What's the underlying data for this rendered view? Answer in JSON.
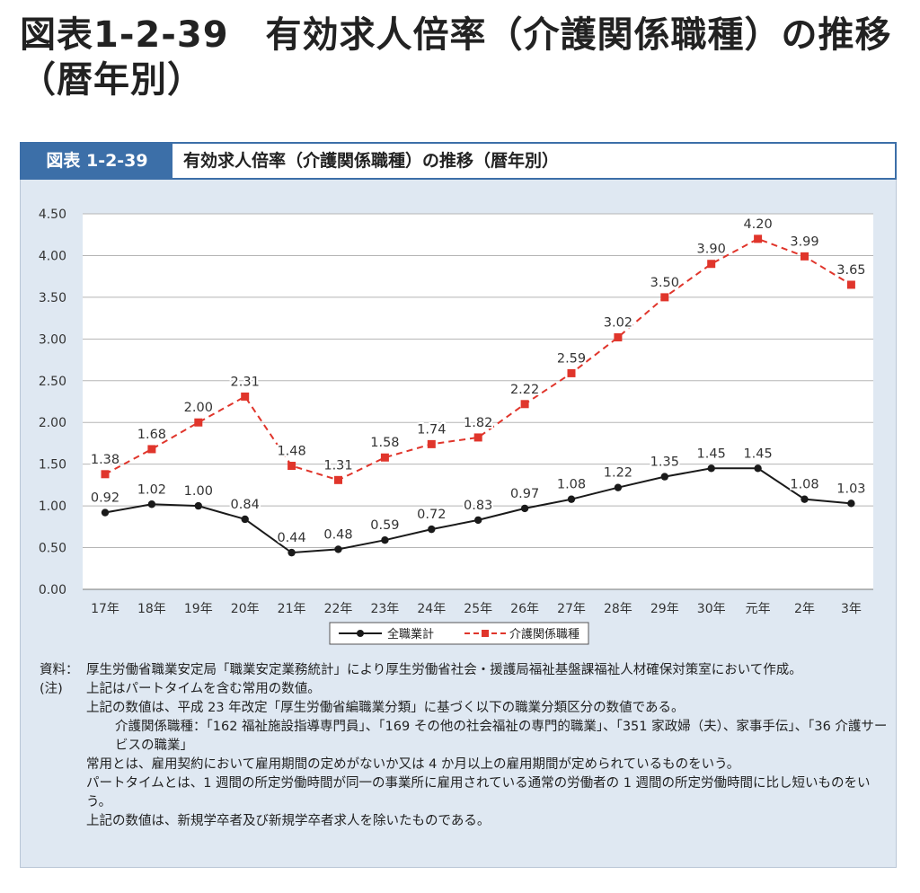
{
  "title": "図表1-2-39　有効求人倍率（介護関係職種）の推移（暦年別）",
  "header": {
    "label": "図表 1-2-39",
    "text": "有効求人倍率（介護関係職種）の推移（暦年別）"
  },
  "chart_data": {
    "type": "line",
    "categories": [
      "17年",
      "18年",
      "19年",
      "20年",
      "21年",
      "22年",
      "23年",
      "24年",
      "25年",
      "26年",
      "27年",
      "28年",
      "29年",
      "30年",
      "元年",
      "2年",
      "3年"
    ],
    "ylim": [
      0,
      4.5
    ],
    "yticks": [
      "0.00",
      "0.50",
      "1.00",
      "1.50",
      "2.00",
      "2.50",
      "3.00",
      "3.50",
      "4.00",
      "4.50"
    ],
    "grid": "horizontal",
    "legend_position": "bottom-center",
    "series": [
      {
        "name": "全職業計",
        "color": "#1a1a1a",
        "marker": "circle",
        "style": "solid",
        "values": [
          0.92,
          1.02,
          1.0,
          0.84,
          0.44,
          0.48,
          0.59,
          0.72,
          0.83,
          0.97,
          1.08,
          1.22,
          1.35,
          1.45,
          1.45,
          1.08,
          1.03
        ],
        "labels": [
          "0.92",
          "1.02",
          "1.00",
          "0.84",
          "0.44",
          "0.48",
          "0.59",
          "0.72",
          "0.83",
          "0.97",
          "1.08",
          "1.22",
          "1.35",
          "1.45",
          "1.45",
          "1.08",
          "1.03"
        ]
      },
      {
        "name": "介護関係職種",
        "color": "#e0352b",
        "marker": "square",
        "style": "dashed",
        "values": [
          1.38,
          1.68,
          2.0,
          2.31,
          1.48,
          1.31,
          1.58,
          1.74,
          1.82,
          2.22,
          2.59,
          3.02,
          3.5,
          3.9,
          4.2,
          3.99,
          3.65
        ],
        "labels": [
          "1.38",
          "1.68",
          "2.00",
          "2.31",
          "1.48",
          "1.31",
          "1.58",
          "1.74",
          "1.82",
          "2.22",
          "2.59",
          "3.02",
          "3.50",
          "3.90",
          "4.20",
          "3.99",
          "3.65"
        ]
      }
    ]
  },
  "notes": {
    "source_head": "資料：",
    "source_body": "厚生労働省職業安定局「職業安定業務統計」により厚生労働省社会・援護局福祉基盤課福祉人材確保対策室において作成。",
    "note_head": "(注)",
    "note_1": "上記はパートタイムを含む常用の数値。",
    "note_2": "上記の数値は、平成 23 年改定「厚生労働省編職業分類」に基づく以下の職業分類区分の数値である。",
    "note_3": "介護関係職種：「162 福祉施設指導専門員」、「169 その他の社会福祉の専門的職業」、「351 家政婦（夫）、家事手伝」、「36 介護サービスの職業」",
    "note_4": "常用とは、雇用契約において雇用期間の定めがないか又は 4 か月以上の雇用期間が定められているものをいう。",
    "note_5": "パートタイムとは、1 週間の所定労働時間が同一の事業所に雇用されている通常の労働者の 1 週間の所定労働時間に比し短いものをいう。",
    "note_6": "上記の数値は、新規学卒者及び新規学卒者求人を除いたものである。"
  }
}
